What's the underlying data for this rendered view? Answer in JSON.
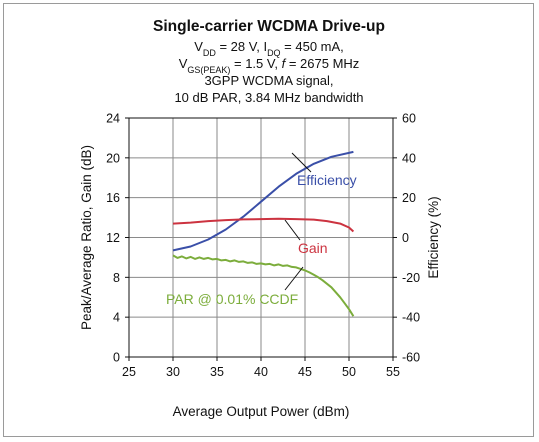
{
  "chart_data": {
    "type": "line",
    "title": "Single-carrier WCDMA Drive-up",
    "subtitle_lines": [
      {
        "parts": [
          {
            "t": "V"
          },
          {
            "t": "DD",
            "sub": true
          },
          {
            "t": " = 28 V, I"
          },
          {
            "t": "DQ",
            "sub": true
          },
          {
            "t": " = 450 mA,"
          }
        ]
      },
      {
        "parts": [
          {
            "t": "V"
          },
          {
            "t": "GS(PEAK)",
            "sub": true
          },
          {
            "t": " = 1.5 V, "
          },
          {
            "t": "f",
            "italic": true
          },
          {
            "t": " = 2675 MHz"
          }
        ]
      },
      {
        "parts": [
          {
            "t": "3GPP WCDMA signal,"
          }
        ]
      },
      {
        "parts": [
          {
            "t": "10 dB PAR, 3.84 MHz bandwidth"
          }
        ]
      }
    ],
    "xlabel": "Average Output Power (dBm)",
    "ylabel": "Peak/Average Ratio, Gain (dB)",
    "y2label": "Efficiency (%)",
    "xlim": [
      25,
      55
    ],
    "ylim": [
      0,
      24
    ],
    "y2lim": [
      -60,
      60
    ],
    "xticks": [
      25,
      30,
      35,
      40,
      45,
      50,
      55
    ],
    "yticks": [
      0,
      4,
      8,
      12,
      16,
      20,
      24
    ],
    "y2ticks": [
      -60,
      -40,
      -20,
      0,
      20,
      40,
      60
    ],
    "grid": true,
    "series": [
      {
        "name": "Efficiency",
        "axis": "right",
        "color": "#3a4fa8",
        "points": [
          [
            30,
            -6.5
          ],
          [
            32,
            -4.5
          ],
          [
            34,
            -1
          ],
          [
            36,
            4
          ],
          [
            38,
            10.5
          ],
          [
            40,
            18
          ],
          [
            42,
            25.5
          ],
          [
            44,
            32
          ],
          [
            46,
            37
          ],
          [
            48,
            40.5
          ],
          [
            50.5,
            43
          ]
        ]
      },
      {
        "name": "Gain",
        "axis": "left",
        "color": "#cc3340",
        "points": [
          [
            30,
            13.4
          ],
          [
            32,
            13.5
          ],
          [
            34,
            13.65
          ],
          [
            36,
            13.75
          ],
          [
            38,
            13.82
          ],
          [
            40,
            13.85
          ],
          [
            42,
            13.88
          ],
          [
            44,
            13.85
          ],
          [
            46,
            13.8
          ],
          [
            47.5,
            13.65
          ],
          [
            49,
            13.4
          ],
          [
            50,
            13
          ],
          [
            50.5,
            12.6
          ]
        ]
      },
      {
        "name": "PAR @ 0.01% CCDF",
        "axis": "left",
        "color": "#7cad3c",
        "points": [
          [
            30,
            10.2
          ],
          [
            30.5,
            9.95
          ],
          [
            31,
            10.1
          ],
          [
            31.5,
            9.9
          ],
          [
            32,
            10.05
          ],
          [
            32.5,
            9.85
          ],
          [
            33,
            10.0
          ],
          [
            33.5,
            9.85
          ],
          [
            34,
            9.95
          ],
          [
            34.5,
            9.8
          ],
          [
            35,
            9.85
          ],
          [
            35.5,
            9.7
          ],
          [
            36,
            9.75
          ],
          [
            36.5,
            9.6
          ],
          [
            37,
            9.7
          ],
          [
            37.5,
            9.55
          ],
          [
            38,
            9.6
          ],
          [
            38.5,
            9.45
          ],
          [
            39,
            9.5
          ],
          [
            39.5,
            9.35
          ],
          [
            40,
            9.4
          ],
          [
            40.5,
            9.3
          ],
          [
            41,
            9.35
          ],
          [
            41.5,
            9.2
          ],
          [
            42,
            9.3
          ],
          [
            42.5,
            9.15
          ],
          [
            43,
            9.2
          ],
          [
            43.5,
            9.05
          ],
          [
            44,
            9.0
          ],
          [
            44.5,
            8.85
          ],
          [
            45,
            8.7
          ],
          [
            45.5,
            8.5
          ],
          [
            46,
            8.25
          ],
          [
            46.5,
            8.0
          ],
          [
            47,
            7.7
          ],
          [
            47.5,
            7.35
          ],
          [
            48,
            7.0
          ],
          [
            48.5,
            6.5
          ],
          [
            49,
            6.0
          ],
          [
            49.5,
            5.4
          ],
          [
            50,
            4.8
          ],
          [
            50.5,
            4.1
          ]
        ]
      }
    ],
    "annotations": [
      {
        "text": "Efficiency",
        "color": "#3a4fa8"
      },
      {
        "text": "Gain",
        "color": "#cc3340"
      },
      {
        "text": "PAR  @ 0.01% CCDF",
        "color": "#7cad3c"
      }
    ]
  }
}
